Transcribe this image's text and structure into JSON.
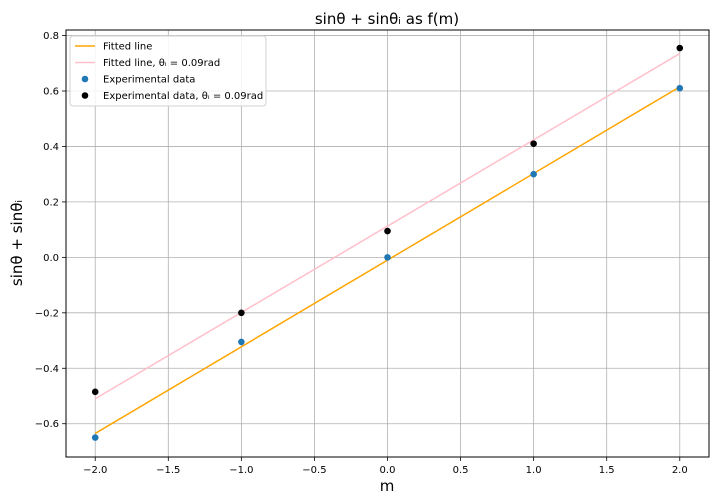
{
  "chart_data": {
    "type": "scatter",
    "title": "sinθ + sinθᵢ as f(m)",
    "xlabel": "m",
    "ylabel": "sinθ + sinθᵢ",
    "xlim": [
      -2.2,
      2.2
    ],
    "ylim": [
      -0.72,
      0.82
    ],
    "xticks": [
      -2.0,
      -1.5,
      -1.0,
      -0.5,
      0.0,
      0.5,
      1.0,
      1.5,
      2.0
    ],
    "yticks": [
      -0.6,
      -0.4,
      -0.2,
      0.0,
      0.2,
      0.4,
      0.6,
      0.8
    ],
    "grid": true,
    "legend_position": "top-left",
    "series": [
      {
        "name": "Fitted line",
        "kind": "line",
        "color": "#ffa500",
        "x": [
          -2,
          2
        ],
        "y": [
          -0.635,
          0.615
        ]
      },
      {
        "name": "Fitted line, θᵢ = 0.09rad",
        "kind": "line",
        "color": "#ffc0cb",
        "x": [
          -2,
          2
        ],
        "y": [
          -0.51,
          0.735
        ]
      },
      {
        "name": "Experimental data",
        "kind": "scatter",
        "color": "#1f77b4",
        "x": [
          -2,
          -1,
          0,
          1,
          2
        ],
        "y": [
          -0.65,
          -0.305,
          0.0,
          0.3,
          0.61
        ]
      },
      {
        "name": "Experimental data, θᵢ = 0.09rad",
        "kind": "scatter",
        "color": "#000000",
        "x": [
          -2,
          -1,
          0,
          1,
          2
        ],
        "y": [
          -0.485,
          -0.2,
          0.095,
          0.41,
          0.755
        ]
      }
    ]
  }
}
